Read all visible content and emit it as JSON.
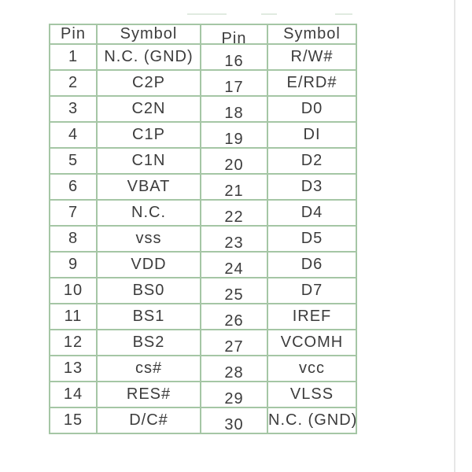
{
  "chart_data": {
    "type": "table",
    "title": "",
    "columns": [
      "Pin",
      "Symbol",
      "Pin",
      "Symbol"
    ],
    "rows": [
      [
        "1",
        "N.C. (GND)",
        "16",
        "R/W#"
      ],
      [
        "2",
        "C2P",
        "17",
        "E/RD#"
      ],
      [
        "3",
        "C2N",
        "18",
        "D0"
      ],
      [
        "4",
        "C1P",
        "19",
        "DI"
      ],
      [
        "5",
        "C1N",
        "20",
        "D2"
      ],
      [
        "6",
        "VBAT",
        "21",
        "D3"
      ],
      [
        "7",
        "N.C.",
        "22",
        "D4"
      ],
      [
        "8",
        "vss",
        "23",
        "D5"
      ],
      [
        "9",
        "VDD",
        "24",
        "D6"
      ],
      [
        "10",
        "BS0",
        "25",
        "D7"
      ],
      [
        "11",
        "BS1",
        "26",
        "IREF"
      ],
      [
        "12",
        "BS2",
        "27",
        "VCOMH"
      ],
      [
        "13",
        "cs#",
        "28",
        "vcc"
      ],
      [
        "14",
        "RES#",
        "29",
        "VLSS"
      ],
      [
        "15",
        "D/C#",
        "30",
        "N.C. (GND)"
      ]
    ],
    "grid": true,
    "legend": false
  },
  "colors": {
    "page_bg": "#ffffff",
    "border_green": "#a5c6a5",
    "text_dark": "#3c3c3c",
    "edge_gray": "#e7e7e7"
  }
}
